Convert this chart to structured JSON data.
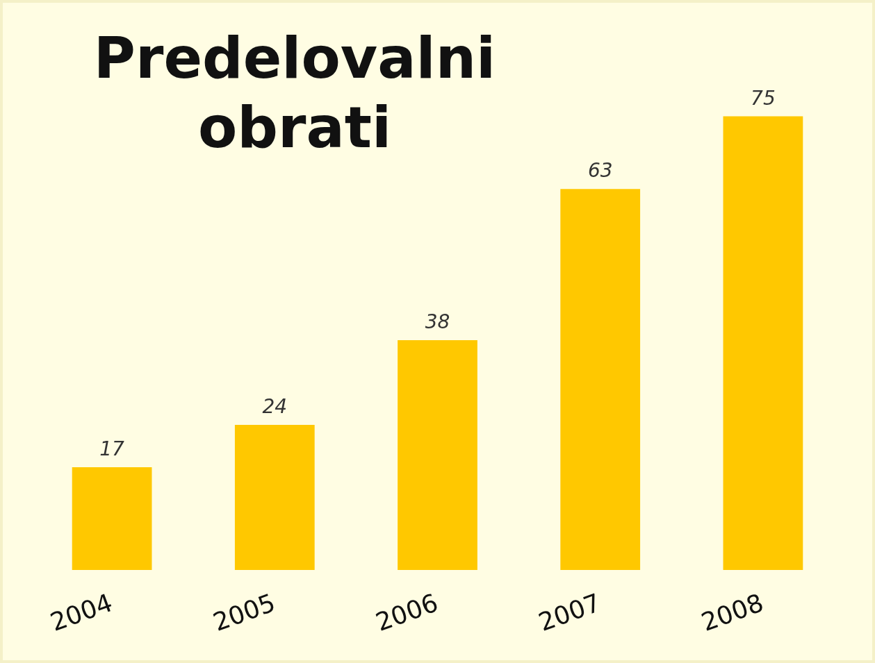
{
  "chart_data": {
    "type": "bar",
    "title": "Predelovalni obrati",
    "categories": [
      "2004",
      "2005",
      "2006",
      "2007",
      "2008"
    ],
    "values": [
      17,
      24,
      38,
      63,
      75
    ],
    "color": "#ffc800",
    "data_labels": true
  }
}
